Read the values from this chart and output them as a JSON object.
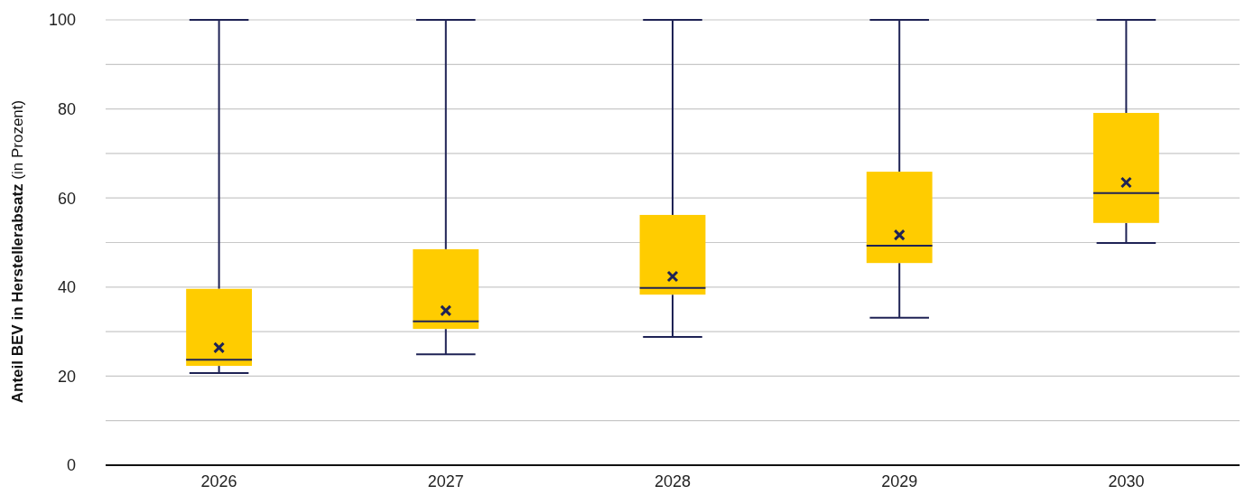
{
  "chart_data": {
    "type": "box",
    "ylabel": "Anteil BEV in Herstellerabsatz (in Prozent)",
    "categories": [
      "2026",
      "2027",
      "2028",
      "2029",
      "2030"
    ],
    "color": "#ffcc00",
    "boxes": [
      {
        "low": 20.7,
        "q1": 22.3,
        "median": 23.7,
        "q3": 39.6,
        "high": 100,
        "mean": 26.4
      },
      {
        "low": 24.9,
        "q1": 30.6,
        "median": 32.3,
        "q3": 48.5,
        "high": 100,
        "mean": 34.7
      },
      {
        "low": 28.8,
        "q1": 38.3,
        "median": 39.8,
        "q3": 56.2,
        "high": 100,
        "mean": 42.4
      },
      {
        "low": 33.1,
        "q1": 45.4,
        "median": 49.3,
        "q3": 65.9,
        "high": 100,
        "mean": 51.7
      },
      {
        "low": 49.9,
        "q1": 54.4,
        "median": 61.1,
        "q3": 79.1,
        "high": 100,
        "mean": 63.5
      }
    ],
    "ylim": [
      0,
      100
    ],
    "yticks": [
      0,
      {
        "value": 10,
        "label": null
      },
      20,
      {
        "value": 30,
        "label": null
      },
      40,
      {
        "value": 50,
        "label": null
      },
      60,
      {
        "value": 70,
        "label": null
      },
      80,
      {
        "value": 90,
        "label": null
      },
      100
    ],
    "grid": "y",
    "marker": "cross"
  }
}
